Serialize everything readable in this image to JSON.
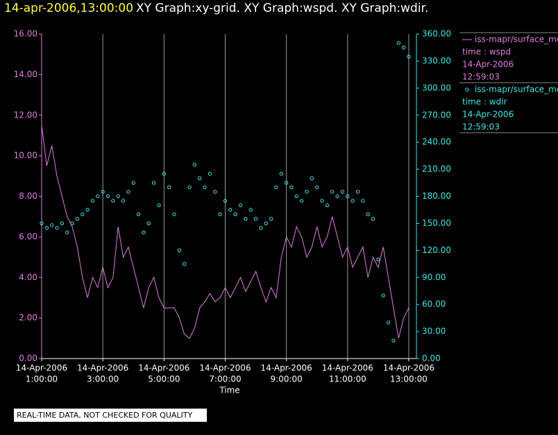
{
  "chart_data": {
    "type": "line_scatter",
    "title_date": "14-apr-2006,13:00:00",
    "title": "XY Graph:xy-grid.  XY Graph:wspd.  XY Graph:wdir.",
    "xlabel": "Time",
    "footer": "REAL-TIME DATA, NOT CHECKED FOR QUALITY",
    "grid": true,
    "xlim": [
      "2006-04-14T01:00",
      "2006-04-14T13:15"
    ],
    "xticks": [
      {
        "value": "2006-04-14T01:00",
        "label": [
          "14-Apr-2006",
          "1:00:00"
        ]
      },
      {
        "value": "2006-04-14T03:00",
        "label": [
          "14-Apr-2006",
          "3:00:00"
        ]
      },
      {
        "value": "2006-04-14T05:00",
        "label": [
          "14-Apr-2006",
          "5:00:00"
        ]
      },
      {
        "value": "2006-04-14T07:00",
        "label": [
          "14-Apr-2006",
          "7:00:00"
        ]
      },
      {
        "value": "2006-04-14T09:00",
        "label": [
          "14-Apr-2006",
          "9:00:00"
        ]
      },
      {
        "value": "2006-04-14T11:00",
        "label": [
          "14-Apr-2006",
          "11:00:00"
        ]
      },
      {
        "value": "2006-04-14T13:00",
        "label": [
          "14-Apr-2006",
          "13:00:00"
        ]
      }
    ],
    "ylim": [
      0,
      16
    ],
    "yticks": [
      {
        "value": 0,
        "label": "0.00"
      },
      {
        "value": 2,
        "label": "2.00"
      },
      {
        "value": 4,
        "label": "4.00"
      },
      {
        "value": 6,
        "label": "6.00"
      },
      {
        "value": 8,
        "label": "8.00"
      },
      {
        "value": 10,
        "label": "10.00"
      },
      {
        "value": 12,
        "label": "12.00"
      },
      {
        "value": 14,
        "label": "14.00"
      },
      {
        "value": 16,
        "label": "16.00"
      }
    ],
    "y2lim": [
      0,
      360
    ],
    "y2ticks": [
      {
        "value": 0,
        "label": "0.00"
      },
      {
        "value": 30,
        "label": "30.00"
      },
      {
        "value": 60,
        "label": "60.00"
      },
      {
        "value": 90,
        "label": "90.00"
      },
      {
        "value": 120,
        "label": "120.00"
      },
      {
        "value": 150,
        "label": "150.00"
      },
      {
        "value": 180,
        "label": "180.00"
      },
      {
        "value": 210,
        "label": "210.00"
      },
      {
        "value": 240,
        "label": "240.00"
      },
      {
        "value": 270,
        "label": "270.00"
      },
      {
        "value": 300,
        "label": "300.00"
      },
      {
        "value": 330,
        "label": "330.00"
      },
      {
        "value": 360,
        "label": "360.00"
      }
    ],
    "x": [
      "2006-04-14T01:00",
      "2006-04-14T01:10",
      "2006-04-14T01:20",
      "2006-04-14T01:30",
      "2006-04-14T01:40",
      "2006-04-14T01:50",
      "2006-04-14T02:00",
      "2006-04-14T02:10",
      "2006-04-14T02:20",
      "2006-04-14T02:30",
      "2006-04-14T02:40",
      "2006-04-14T02:50",
      "2006-04-14T03:00",
      "2006-04-14T03:10",
      "2006-04-14T03:20",
      "2006-04-14T03:30",
      "2006-04-14T03:40",
      "2006-04-14T03:50",
      "2006-04-14T04:00",
      "2006-04-14T04:10",
      "2006-04-14T04:20",
      "2006-04-14T04:30",
      "2006-04-14T04:40",
      "2006-04-14T04:50",
      "2006-04-14T05:00",
      "2006-04-14T05:10",
      "2006-04-14T05:20",
      "2006-04-14T05:30",
      "2006-04-14T05:40",
      "2006-04-14T05:50",
      "2006-04-14T06:00",
      "2006-04-14T06:10",
      "2006-04-14T06:20",
      "2006-04-14T06:30",
      "2006-04-14T06:40",
      "2006-04-14T06:50",
      "2006-04-14T07:00",
      "2006-04-14T07:10",
      "2006-04-14T07:20",
      "2006-04-14T07:30",
      "2006-04-14T07:40",
      "2006-04-14T07:50",
      "2006-04-14T08:00",
      "2006-04-14T08:10",
      "2006-04-14T08:20",
      "2006-04-14T08:30",
      "2006-04-14T08:40",
      "2006-04-14T08:50",
      "2006-04-14T09:00",
      "2006-04-14T09:10",
      "2006-04-14T09:20",
      "2006-04-14T09:30",
      "2006-04-14T09:40",
      "2006-04-14T09:50",
      "2006-04-14T10:00",
      "2006-04-14T10:10",
      "2006-04-14T10:20",
      "2006-04-14T10:30",
      "2006-04-14T10:40",
      "2006-04-14T10:50",
      "2006-04-14T11:00",
      "2006-04-14T11:10",
      "2006-04-14T11:20",
      "2006-04-14T11:30",
      "2006-04-14T11:40",
      "2006-04-14T11:50",
      "2006-04-14T12:00",
      "2006-04-14T12:10",
      "2006-04-14T12:20",
      "2006-04-14T12:30",
      "2006-04-14T12:40",
      "2006-04-14T12:50",
      "2006-04-14T13:00"
    ],
    "series": [
      {
        "name": "iss-mapr/surface_met",
        "legend_var": "time : wspd",
        "legend_date": "14-Apr-2006",
        "legend_time": "12:59:03",
        "color": "#e07ee0",
        "style": "line",
        "values": [
          11.5,
          9.5,
          10.5,
          9,
          8,
          7,
          6.5,
          5.5,
          4,
          3,
          4,
          3.5,
          4.5,
          3.5,
          4,
          6.5,
          5,
          5.5,
          4.5,
          3.5,
          2.5,
          3.5,
          4,
          3,
          2.5,
          2.5,
          2.5,
          2,
          1.2,
          1,
          1.5,
          2.5,
          2.8,
          3.2,
          2.8,
          3,
          3.5,
          3,
          3.5,
          4,
          3.3,
          3.8,
          4.3,
          3.5,
          2.8,
          3.5,
          3,
          5,
          6,
          5.5,
          6.5,
          6,
          5,
          5.5,
          6.5,
          5.5,
          6,
          7,
          6,
          5,
          5.5,
          4.5,
          5,
          5.5,
          4,
          5,
          4.5,
          5.5,
          4,
          2.5,
          1,
          2,
          2.5
        ]
      },
      {
        "name": "iss-mapr/surface_met",
        "legend_var": "time : wdir",
        "legend_date": "14-Apr-2006",
        "legend_time": "12:59:03",
        "color": "#40e8e8",
        "style": "scatter",
        "axis": "y2",
        "values": [
          150,
          145,
          148,
          145,
          150,
          140,
          150,
          155,
          160,
          165,
          175,
          180,
          185,
          180,
          175,
          180,
          175,
          185,
          195,
          160,
          140,
          150,
          195,
          170,
          205,
          190,
          160,
          120,
          105,
          190,
          215,
          200,
          190,
          205,
          185,
          160,
          175,
          165,
          160,
          170,
          155,
          165,
          155,
          145,
          150,
          155,
          190,
          205,
          195,
          190,
          180,
          175,
          185,
          200,
          190,
          175,
          170,
          185,
          180,
          185,
          180,
          175,
          185,
          175,
          160,
          155,
          110,
          70,
          40,
          20,
          350,
          345,
          335
        ]
      }
    ]
  }
}
